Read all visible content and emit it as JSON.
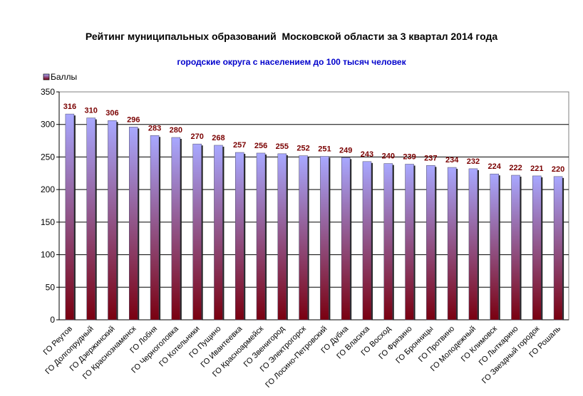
{
  "chart_data": {
    "type": "bar",
    "title": "Рейтинг муниципальных образований  Московской области за 3 квартал 2014 года",
    "subtitle": "городские округа с населением до 100 тысяч человек",
    "legend": "Баллы",
    "legend_position": "top-left",
    "ylim": [
      0,
      350
    ],
    "y_ticks": [
      0,
      50,
      100,
      150,
      200,
      250,
      300,
      350
    ],
    "grid": true,
    "colors": {
      "bar_top": "#a8a8ff",
      "bar_bottom": "#7a0010",
      "data_label": "#7a0000",
      "subtitle": "#0000cc"
    },
    "categories": [
      "ГО Реутов",
      "ГО Долгопрудный",
      "ГО Дзержинский",
      "ГО Краснознаменск",
      "ГО Лобня",
      "ГО Черноголовка",
      "ГО Котельники",
      "ГО Пущино",
      "ГО Ивантеевка",
      "ГО Красноармейск",
      "ГО Звенигород",
      "ГО Электрогорск",
      "ГО Лосино-Петровский",
      "ГО Дубна",
      "ГО Власиха",
      "ГО Восход",
      "ГО Фрязино",
      "ГО Бронницы",
      "ГО Протвино",
      "ГО Молодежный",
      "ГО Климовск",
      "ГО Лыткарино",
      "ГО Звездный городок",
      "ГО Рошаль"
    ],
    "series": [
      {
        "name": "Баллы",
        "values": [
          316,
          310,
          306,
          296,
          283,
          280,
          270,
          268,
          257,
          256,
          255,
          252,
          251,
          249,
          243,
          240,
          239,
          237,
          234,
          232,
          224,
          222,
          221,
          220
        ]
      }
    ]
  }
}
